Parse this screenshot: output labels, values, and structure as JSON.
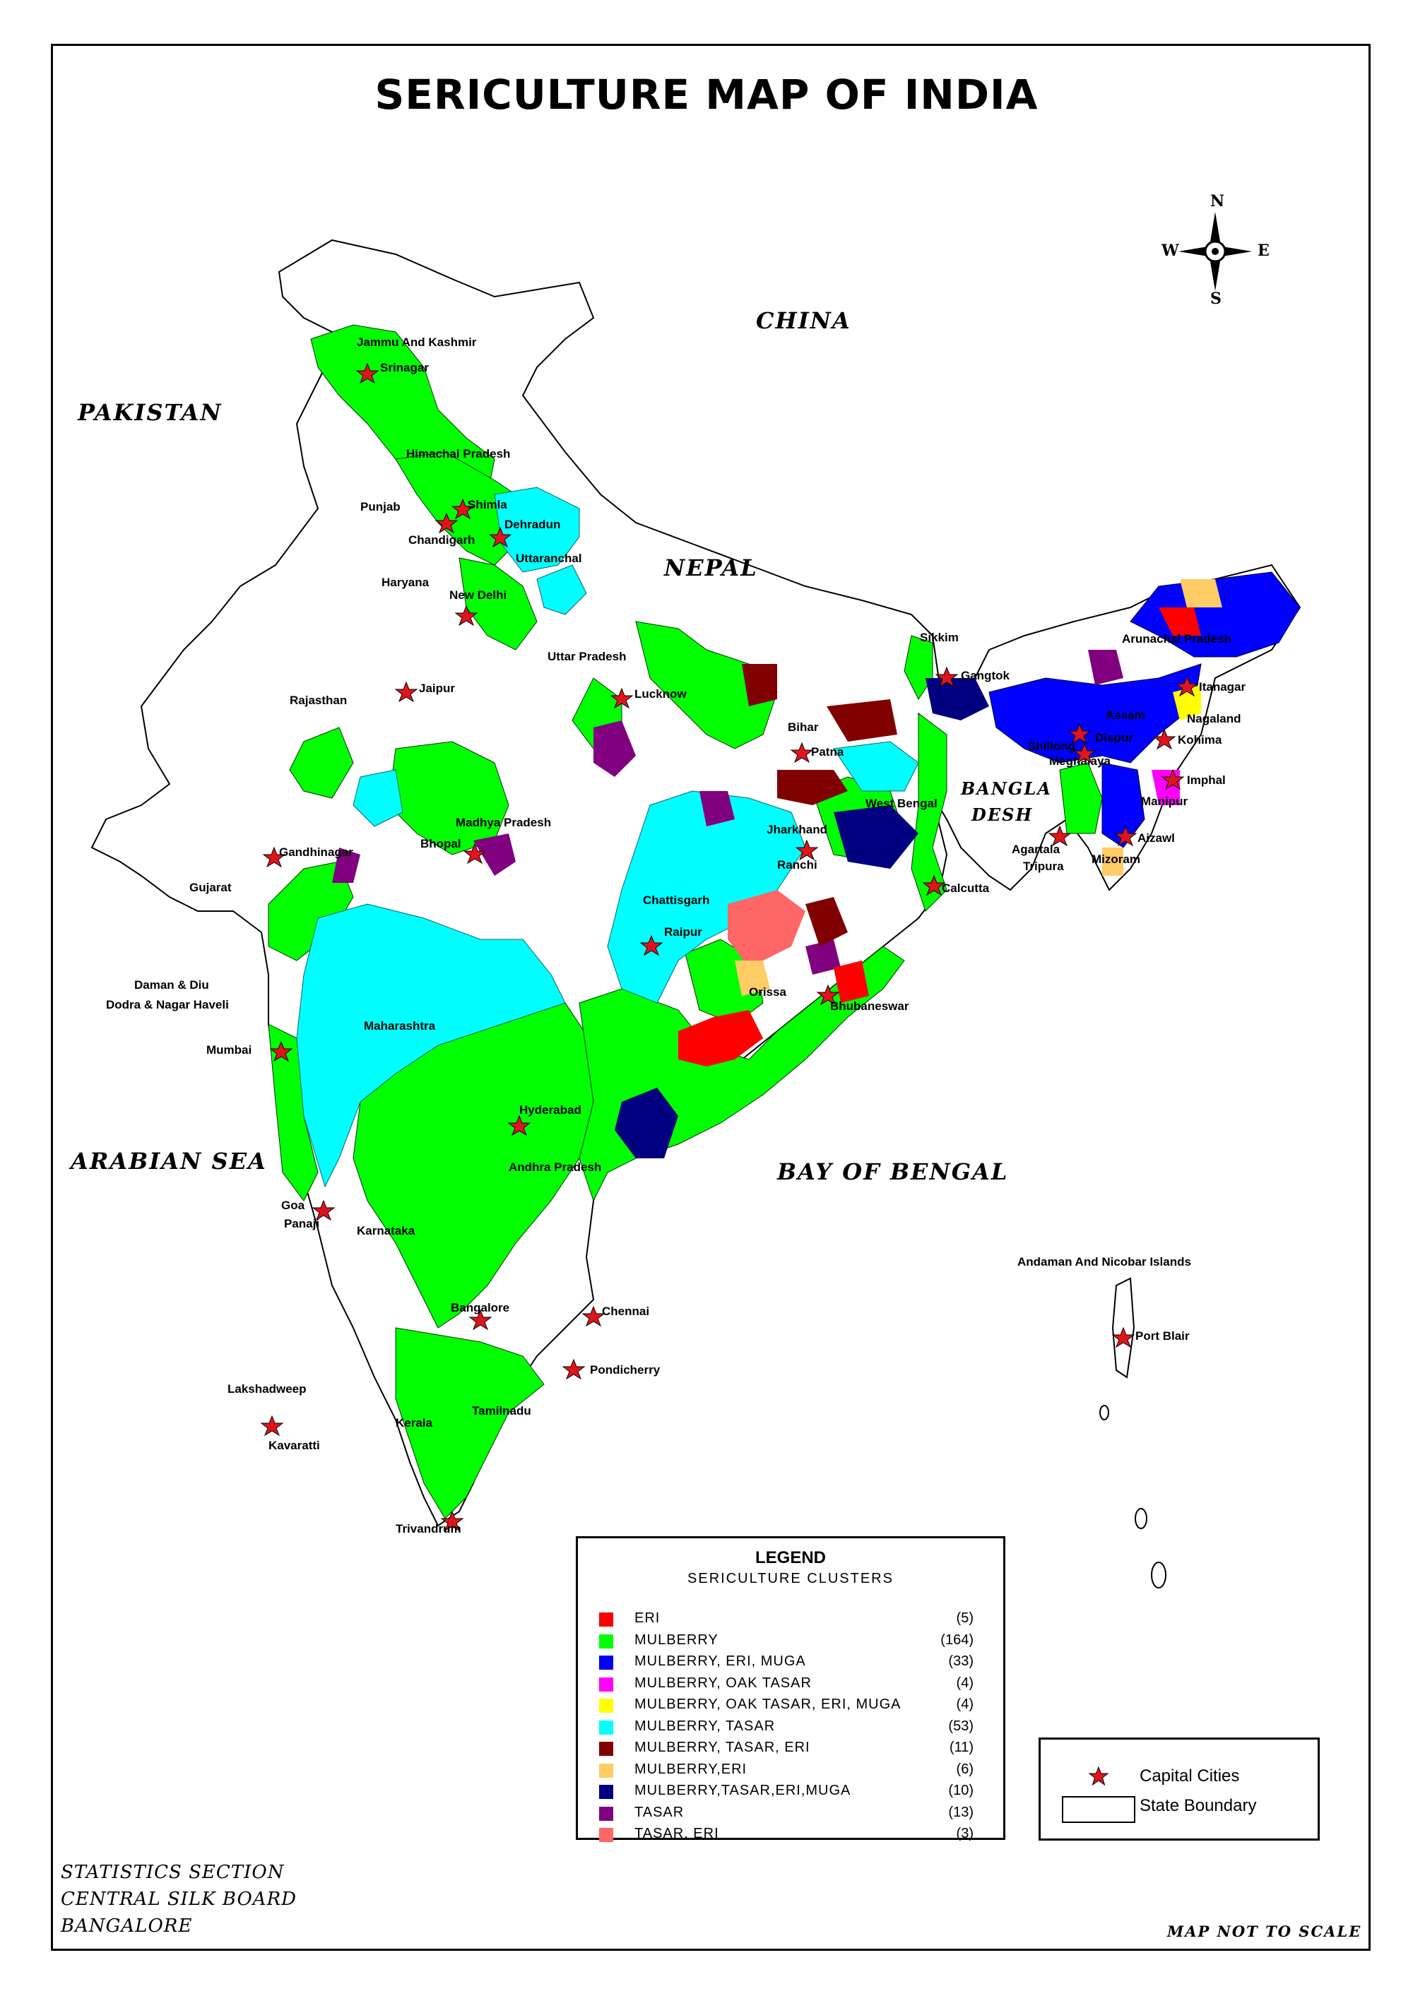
{
  "title": "SERICULTURE MAP OF INDIA",
  "compass": {
    "n": "N",
    "s": "S",
    "e": "E",
    "w": "W"
  },
  "regions": {
    "china": "CHINA",
    "pakistan": "PAKISTAN",
    "nepal": "NEPAL",
    "bangladesh_1": "BANGLA",
    "bangladesh_2": "DESH",
    "arabian_sea": "ARABIAN SEA",
    "bay_of_bengal": "BAY OF BENGAL"
  },
  "states": {
    "jk": "Jammu And Kashmir",
    "hp": "Himachal Pradesh",
    "punjab": "Punjab",
    "haryana": "Haryana",
    "uttaranchal": "Uttaranchal",
    "up": "Uttar Pradesh",
    "rajasthan": "Rajasthan",
    "gujarat": "Gujarat",
    "daman_1": "Daman & Diu",
    "daman_2": "Dodra & Nagar Haveli",
    "mp": "Madhya Pradesh",
    "maharashtra": "Maharashtra",
    "chattisgarh": "Chattisgarh",
    "bihar": "Bihar",
    "jharkhand": "Jharkhand",
    "wb": "West Bengal",
    "orissa": "Orissa",
    "ap": "Andhra Pradesh",
    "karnataka": "Karnataka",
    "kerala": "Kerala",
    "tn": "Tamilnadu",
    "sikkim": "Sikkim",
    "arunachal": "Arunachal Pradesh",
    "assam": "Assam",
    "meghalaya": "Meghalaya",
    "nagaland": "Nagaland",
    "manipur": "Manipur",
    "mizoram": "Mizoram",
    "tripura": "Tripura",
    "lakshadweep": "Lakshadweep",
    "andaman": "Andaman And Nicobar Islands"
  },
  "capitals": {
    "srinagar": "Srinagar",
    "shimla": "Shimla",
    "chandigarh": "Chandigarh",
    "dehradun": "Dehradun",
    "new_delhi": "New Delhi",
    "jaipur": "Jaipur",
    "lucknow": "Lucknow",
    "patna": "Patna",
    "gangtok": "Gangtok",
    "itanagar": "Itanagar",
    "dispur": "Dispur",
    "shillong": "Shillong",
    "kohima": "Kohima",
    "imphal": "Imphal",
    "aizawl": "Aizawl",
    "agartala": "Agartala",
    "gandhinagar": "Gandhinagar",
    "bhopal": "Bhopal",
    "ranchi": "Ranchi",
    "calcutta": "Calcutta",
    "raipur": "Raipur",
    "bhubaneswar": "Bhubaneswar",
    "mumbai": "Mumbai",
    "hyderabad": "Hyderabad",
    "goa": "Goa",
    "panaji": "Panaji",
    "bangalore": "Bangalore",
    "chennai": "Chennai",
    "pondicherry": "Pondicherry",
    "kavaratti": "Kavaratti",
    "trivandrum": "Trivandrum",
    "port_blair": "Port Blair"
  },
  "legend": {
    "title": "LEGEND",
    "subtitle": "SERICULTURE CLUSTERS",
    "items": [
      {
        "name": "ERI",
        "count": "(5)",
        "color": "#ff0000"
      },
      {
        "name": "MULBERRY",
        "count": "(164)",
        "color": "#00ff00"
      },
      {
        "name": "MULBERRY, ERI, MUGA",
        "count": "(33)",
        "color": "#0000ff"
      },
      {
        "name": "MULBERRY, OAK TASAR",
        "count": "(4)",
        "color": "#ff00ff"
      },
      {
        "name": "MULBERRY, OAK TASAR, ERI, MUGA",
        "count": "(4)",
        "color": "#ffff00"
      },
      {
        "name": "MULBERRY, TASAR",
        "count": "(53)",
        "color": "#00ffff"
      },
      {
        "name": "MULBERRY, TASAR, ERI",
        "count": "(11)",
        "color": "#800000"
      },
      {
        "name": "MULBERRY,ERI",
        "count": "(6)",
        "color": "#ffcc66"
      },
      {
        "name": "MULBERRY,TASAR,ERI,MUGA",
        "count": "(10)",
        "color": "#000080"
      },
      {
        "name": "TASAR",
        "count": "(13)",
        "color": "#800080"
      },
      {
        "name": "TASAR, ERI",
        "count": "(3)",
        "color": "#ff6666"
      }
    ],
    "capital_cities": "Capital Cities",
    "state_boundary": "State Boundary"
  },
  "credit": [
    "STATISTICS SECTION",
    "CENTRAL SILK BOARD",
    "BANGALORE"
  ],
  "scale_note": "MAP NOT TO SCALE"
}
